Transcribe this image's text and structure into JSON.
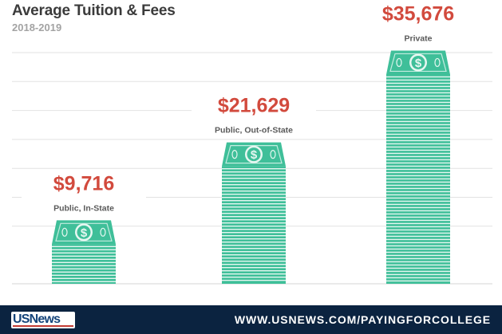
{
  "chart_data": {
    "type": "bar",
    "title": "Average Tuition & Fees",
    "subtitle": "2018-2019",
    "categories": [
      "Public, In-State",
      "Public, Out-of-State",
      "Private"
    ],
    "values": [
      9716,
      21629,
      35676
    ],
    "value_labels": [
      "$9,716",
      "$21,629",
      "$35,676"
    ],
    "ylim": [
      0,
      40000
    ],
    "grid": true,
    "legend": "none"
  },
  "colors": {
    "bill": "#3fbf99",
    "bill_dark": "#2f9e7c",
    "bill_stripe": "#e6f7f1",
    "value_label": "#d24a3d",
    "grid": "#e2e2e2",
    "footer_bg": "#0b2340"
  },
  "icons": {
    "bill": "dollar-bill-icon"
  },
  "footer": {
    "logo_text": "USNews",
    "url": "WWW.USNEWS.COM/PAYINGFORCOLLEGE"
  }
}
